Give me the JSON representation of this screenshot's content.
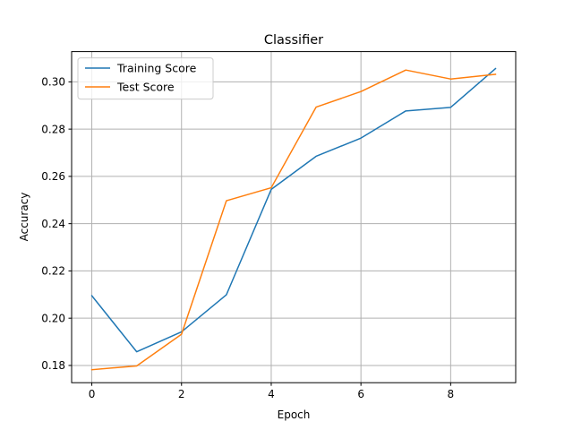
{
  "chart_data": {
    "type": "line",
    "title": "Classifier",
    "xlabel": "Epoch",
    "ylabel": "Accuracy",
    "x": [
      0,
      1,
      2,
      3,
      4,
      5,
      6,
      7,
      8,
      9
    ],
    "xlim": [
      -0.45,
      9.45
    ],
    "ylim": [
      0.1727,
      0.3128
    ],
    "xticks": [
      0,
      2,
      4,
      6,
      8
    ],
    "xtick_labels": [
      "0",
      "2",
      "4",
      "6",
      "8"
    ],
    "yticks": [
      0.18,
      0.2,
      0.22,
      0.24,
      0.26,
      0.28,
      0.3
    ],
    "ytick_labels": [
      "0.18",
      "0.20",
      "0.22",
      "0.24",
      "0.26",
      "0.28",
      "0.30"
    ],
    "grid": true,
    "legend_position": "upper-left",
    "series": [
      {
        "name": "Training Score",
        "color": "#1f77b4",
        "values": [
          0.2095,
          0.1858,
          0.1942,
          0.2099,
          0.2545,
          0.2685,
          0.2762,
          0.2877,
          0.2892,
          0.3056
        ]
      },
      {
        "name": "Test Score",
        "color": "#ff7f0e",
        "values": [
          0.1782,
          0.1798,
          0.1932,
          0.2497,
          0.2552,
          0.2893,
          0.2959,
          0.305,
          0.3012,
          0.3032
        ]
      }
    ]
  }
}
